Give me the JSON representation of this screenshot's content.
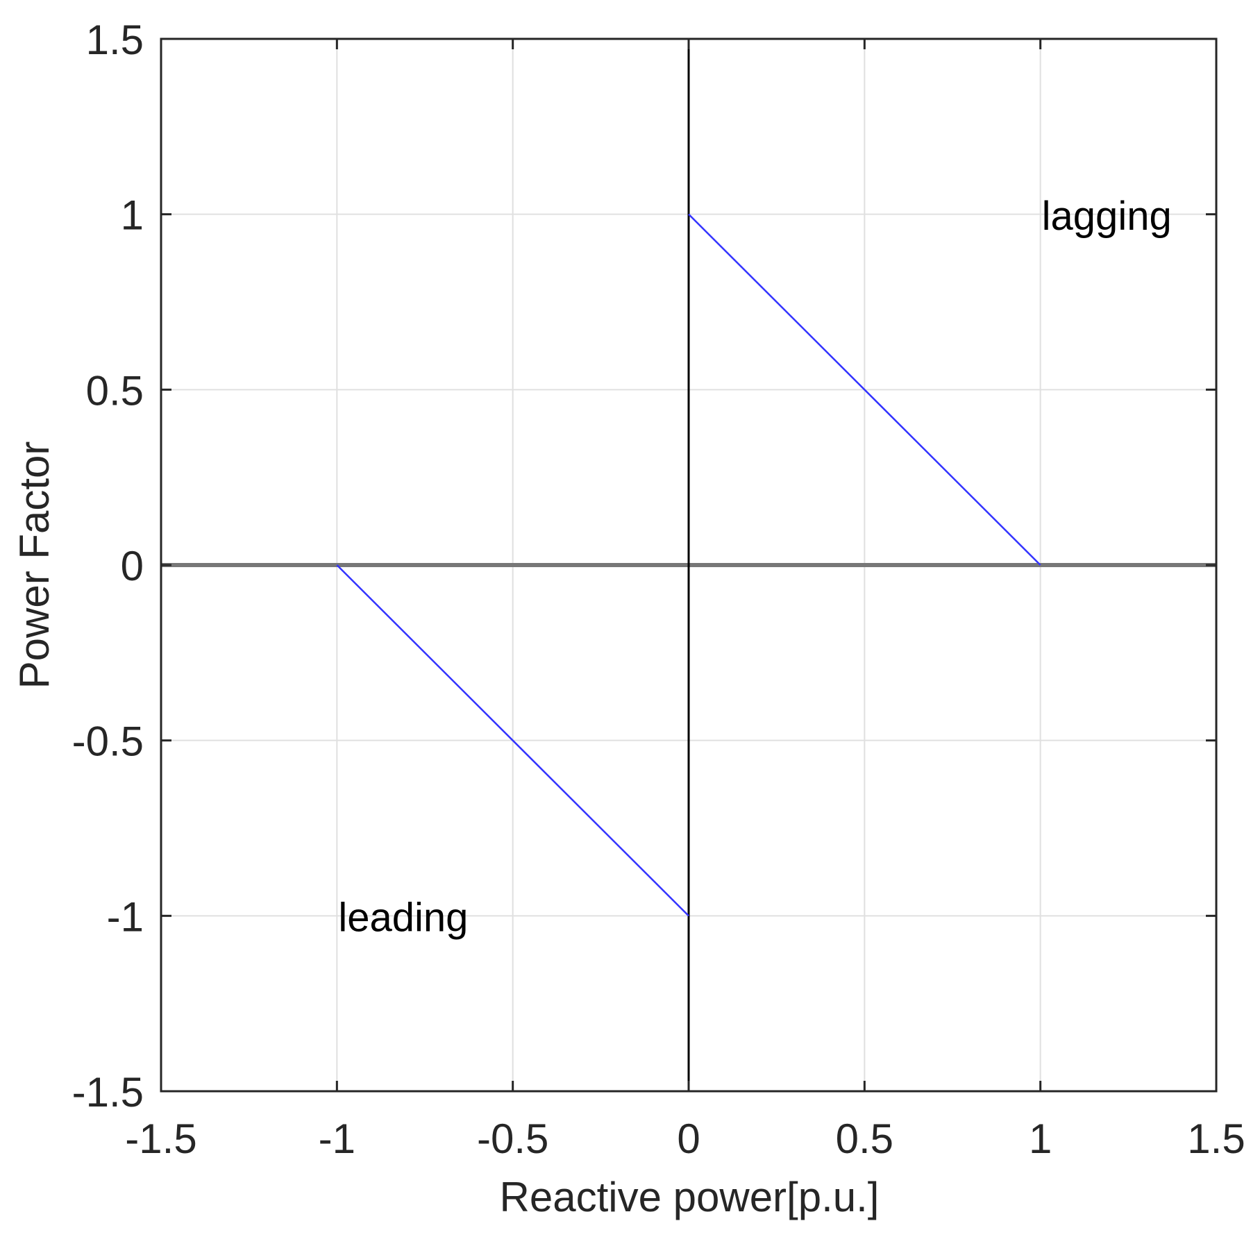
{
  "chart_data": {
    "type": "line",
    "title": "",
    "xlabel": "Reactive power[p.u.]",
    "ylabel": "Power Factor",
    "xlim": [
      -1.5,
      1.5
    ],
    "ylim": [
      -1.5,
      1.5
    ],
    "grid": true,
    "xticks": [
      -1.5,
      -1,
      -0.5,
      0,
      0.5,
      1,
      1.5
    ],
    "yticks": [
      -1.5,
      -1,
      -0.5,
      0,
      0.5,
      1,
      1.5
    ],
    "xtick_labels": [
      "-1.5",
      "-1",
      "-0.5",
      "0",
      "0.5",
      "1",
      "1.5"
    ],
    "ytick_labels": [
      "-1.5",
      "-1",
      "-0.5",
      "0",
      "0.5",
      "1",
      "1.5"
    ],
    "series": [
      {
        "name": "lagging",
        "color": "#3333ff",
        "x": [
          0,
          1
        ],
        "y": [
          1,
          0
        ]
      },
      {
        "name": "leading",
        "color": "#3333ff",
        "x": [
          -1,
          0
        ],
        "y": [
          0,
          -1
        ]
      }
    ],
    "reference_lines": [
      {
        "orientation": "horizontal",
        "value": 0,
        "color": "#777777"
      },
      {
        "orientation": "vertical",
        "value": 0,
        "color": "#000000"
      }
    ],
    "annotations": [
      {
        "text": "lagging",
        "x": 1.0,
        "y": 0.98
      },
      {
        "text": "leading",
        "x": -1.0,
        "y": -1.02
      }
    ],
    "legend": null
  },
  "colors": {
    "axis": "#262626",
    "grid": "#e0e0e0",
    "series": "#3333ff",
    "zero_h": "#777777",
    "zero_v": "#000000"
  }
}
